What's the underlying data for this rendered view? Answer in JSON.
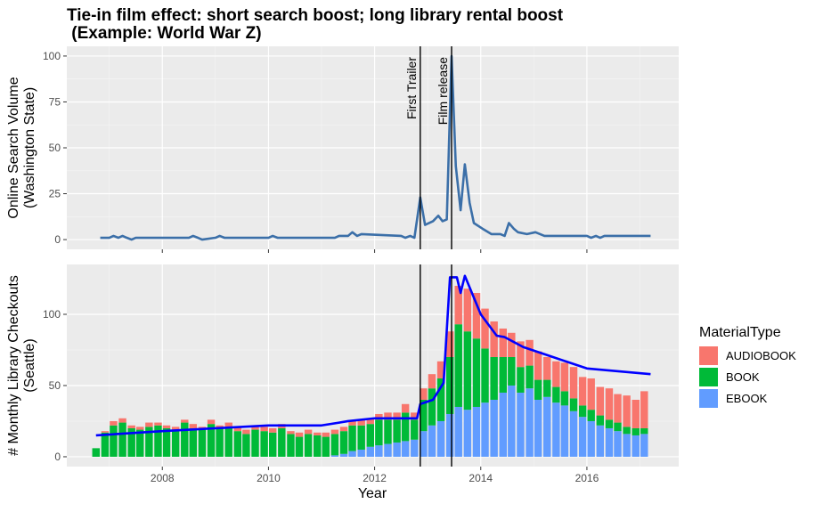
{
  "chart_data": [
    {
      "type": "line",
      "title": [
        "Tie-in film effect: short search boost; long library rental boost",
        " (Example: World War Z)"
      ],
      "ylabel": [
        "Online Search Volume",
        "(Washington State)"
      ],
      "x": [
        2006.83,
        2007.0,
        2007.08,
        2007.17,
        2007.25,
        2007.33,
        2007.42,
        2007.5,
        2008.5,
        2008.58,
        2008.67,
        2008.75,
        2009.0,
        2009.08,
        2009.17,
        2010.0,
        2010.08,
        2010.17,
        2011.25,
        2011.33,
        2011.5,
        2011.58,
        2011.67,
        2011.75,
        2012.5,
        2012.58,
        2012.67,
        2012.75,
        2012.86,
        2012.95,
        2013.1,
        2013.2,
        2013.28,
        2013.36,
        2013.45,
        2013.53,
        2013.62,
        2013.7,
        2013.79,
        2013.87,
        2014.03,
        2014.2,
        2014.37,
        2014.45,
        2014.53,
        2014.62,
        2014.7,
        2014.87,
        2015.03,
        2015.2,
        2016.0,
        2016.08,
        2016.17,
        2016.25,
        2016.33,
        2017.2
      ],
      "values": [
        1,
        1,
        2,
        1,
        2,
        1,
        0,
        1,
        1,
        2,
        1,
        0,
        1,
        2,
        1,
        1,
        2,
        1,
        1,
        2,
        2,
        4,
        2,
        3,
        2,
        1,
        2,
        1,
        23,
        8,
        10,
        13,
        10,
        11,
        100,
        40,
        16,
        41,
        20,
        9,
        6,
        3,
        3,
        2,
        9,
        6,
        4,
        3,
        4,
        2,
        2,
        1,
        2,
        1,
        2,
        2
      ],
      "color": "#3b6fa8",
      "xlim": [
        2006.2,
        2017.73
      ],
      "xticks": [
        2008,
        2010,
        2012,
        2014,
        2016
      ],
      "ylim": [
        -5.3,
        105.3
      ],
      "yticks": [
        0,
        25,
        50,
        75,
        100
      ],
      "annotations": [
        {
          "x": 2012.86,
          "label": "First Trailer"
        },
        {
          "x": 2013.45,
          "label": "Film release"
        }
      ]
    },
    {
      "type": "stacked-bar",
      "ylabel": [
        "# Monthly Library Checkouts",
        "(Seattle)"
      ],
      "xlabel": "Year",
      "legend_title": "MaterialType",
      "x": [
        2006.75,
        2006.92,
        2007.08,
        2007.25,
        2007.42,
        2007.58,
        2007.75,
        2007.92,
        2008.08,
        2008.25,
        2008.42,
        2008.58,
        2008.75,
        2008.92,
        2009.08,
        2009.25,
        2009.42,
        2009.58,
        2009.75,
        2009.92,
        2010.08,
        2010.25,
        2010.42,
        2010.58,
        2010.75,
        2010.92,
        2011.08,
        2011.25,
        2011.42,
        2011.58,
        2011.75,
        2011.92,
        2012.08,
        2012.25,
        2012.42,
        2012.58,
        2012.75,
        2012.92,
        2013.08,
        2013.25,
        2013.42,
        2013.58,
        2013.75,
        2013.92,
        2014.08,
        2014.25,
        2014.42,
        2014.58,
        2014.75,
        2014.92,
        2015.08,
        2015.25,
        2015.42,
        2015.58,
        2015.75,
        2015.92,
        2016.08,
        2016.25,
        2016.42,
        2016.58,
        2016.75,
        2016.92,
        2017.08
      ],
      "series": [
        {
          "name": "AUDIOBOOK",
          "color": "#f8766d",
          "values": [
            0,
            1,
            3,
            3,
            2,
            2,
            3,
            2,
            2,
            3,
            2,
            3,
            2,
            3,
            2,
            3,
            3,
            3,
            2,
            3,
            3,
            3,
            2,
            3,
            3,
            2,
            3,
            3,
            3,
            3,
            4,
            4,
            4,
            5,
            5,
            6,
            5,
            8,
            10,
            12,
            18,
            27,
            30,
            32,
            28,
            25,
            20,
            17,
            18,
            18,
            20,
            16,
            18,
            20,
            22,
            20,
            22,
            20,
            22,
            20,
            22,
            20,
            26
          ]
        },
        {
          "name": "BOOK",
          "color": "#00ba38",
          "values": [
            6,
            17,
            22,
            24,
            20,
            19,
            21,
            22,
            20,
            18,
            24,
            20,
            19,
            23,
            20,
            21,
            18,
            16,
            19,
            18,
            17,
            20,
            16,
            14,
            16,
            15,
            14,
            15,
            16,
            18,
            17,
            16,
            18,
            17,
            16,
            20,
            14,
            22,
            26,
            30,
            40,
            58,
            55,
            48,
            38,
            30,
            25,
            20,
            18,
            16,
            14,
            12,
            11,
            10,
            9,
            8,
            8,
            7,
            6,
            6,
            5,
            5,
            4
          ]
        },
        {
          "name": "EBOOK",
          "color": "#619cff",
          "values": [
            0,
            0,
            0,
            0,
            0,
            0,
            0,
            0,
            0,
            0,
            0,
            0,
            0,
            0,
            0,
            0,
            0,
            0,
            0,
            0,
            0,
            0,
            0,
            0,
            0,
            0,
            0,
            1,
            2,
            4,
            5,
            7,
            8,
            9,
            10,
            11,
            12,
            18,
            22,
            25,
            30,
            35,
            33,
            35,
            38,
            40,
            45,
            50,
            45,
            48,
            40,
            42,
            38,
            36,
            32,
            28,
            25,
            22,
            20,
            18,
            16,
            15,
            16
          ]
        }
      ],
      "trend": {
        "color": "#0000ff",
        "x": [
          2006.75,
          2008.0,
          2009.0,
          2010.0,
          2011.0,
          2011.5,
          2012.0,
          2012.8,
          2012.86,
          2013.1,
          2013.3,
          2013.42,
          2013.55,
          2013.62,
          2013.7,
          2014.0,
          2014.3,
          2014.45,
          2014.8,
          2015.2,
          2016.0,
          2017.2
        ],
        "values": [
          15,
          18,
          20,
          22,
          22,
          25,
          27,
          27,
          37,
          40,
          52,
          126,
          126,
          115,
          127,
          100,
          85,
          84,
          77,
          72,
          62,
          58
        ]
      },
      "vlines": [
        2012.86,
        2013.45
      ],
      "xlim": [
        2006.2,
        2017.73
      ],
      "xticks": [
        2008,
        2010,
        2012,
        2014,
        2016
      ],
      "ylim": [
        -6.9,
        135
      ],
      "yticks": [
        0,
        50,
        100
      ]
    }
  ]
}
